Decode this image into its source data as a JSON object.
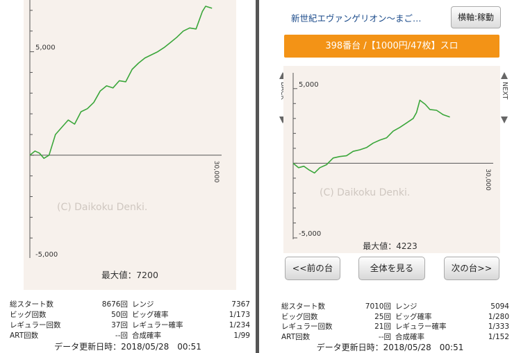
{
  "left_panel": {
    "max_value_label": "最大値：7200",
    "stats": [
      {
        "label": "総スタート数",
        "value": "8676回",
        "label2": "レンジ",
        "value2": "7367"
      },
      {
        "label": "ビッグ回数",
        "value": "50回",
        "label2": "ビッグ確率",
        "value2": "1/173"
      },
      {
        "label": "レギュラー回数",
        "value": "37回",
        "label2": "レギュラー確率",
        "value2": "1/234"
      },
      {
        "label": "ART回数",
        "value": "--回",
        "label2": "合成確率",
        "value2": "1/99"
      }
    ],
    "update_time": "データ更新日時：2018/05/28　00:51"
  },
  "right_panel": {
    "machine_title": "新世紀エヴァンゲリオン〜まご…",
    "axis_button": "横軸:稼動",
    "machine_info": "398番台 /【1000円/47枚】スロ",
    "nav_back": "BACK",
    "nav_next": "NEXT",
    "max_value_label": "最大値：4223",
    "buttons": {
      "prev": "<<前の台",
      "all": "全体を見る",
      "next": "次の台>>"
    },
    "stats": [
      {
        "label": "総スタート数",
        "value": "7010回",
        "label2": "レンジ",
        "value2": "5094"
      },
      {
        "label": "ビッグ回数",
        "value": "25回",
        "label2": "ビッグ確率",
        "value2": "1/280"
      },
      {
        "label": "レギュラー回数",
        "value": "21回",
        "label2": "レギュラー確率",
        "value2": "1/333"
      },
      {
        "label": "ART回数",
        "value": "--回",
        "label2": "合成確率",
        "value2": "1/152"
      }
    ],
    "update_time": "データ更新日時：2018/05/28　00:51"
  },
  "chart_data": [
    {
      "type": "line",
      "ylim": [
        -5000,
        7500
      ],
      "xlim": [
        0,
        30000
      ],
      "y_ticks": [
        5000,
        -5000
      ],
      "y_tick_labels": [
        "5,000",
        "-5,000"
      ],
      "x_tick_labels": [
        "30,000"
      ],
      "watermark": "(C) Daikoku Denki.",
      "x": [
        0,
        800,
        1500,
        2200,
        3000,
        4000,
        5000,
        6000,
        7000,
        8000,
        9000,
        10000,
        11000,
        12000,
        13000,
        14000,
        15000,
        16000,
        17000,
        18000,
        19000,
        20000,
        21000,
        22000,
        23000,
        24000,
        25000,
        26000,
        27000,
        27500,
        28500
      ],
      "values": [
        0,
        200,
        100,
        -150,
        0,
        1000,
        1350,
        1700,
        1500,
        2100,
        2250,
        2550,
        3100,
        3350,
        3250,
        3600,
        3550,
        4150,
        4450,
        4700,
        4850,
        5000,
        5200,
        5450,
        5700,
        6000,
        6150,
        6100,
        6950,
        7200,
        7100
      ],
      "color": "#3aa63a"
    },
    {
      "type": "line",
      "ylim": [
        -5000,
        5500
      ],
      "xlim": [
        0,
        30000
      ],
      "y_ticks": [
        5000,
        -5000
      ],
      "y_tick_labels": [
        "5,000",
        "-5,000"
      ],
      "x_tick_labels": [
        "30,000"
      ],
      "watermark": "(C) Daikoku Denki.",
      "x": [
        0,
        800,
        1600,
        2400,
        3200,
        4000,
        5000,
        6000,
        7000,
        8000,
        9000,
        10000,
        11000,
        12000,
        13000,
        14000,
        15000,
        16000,
        17000,
        18000,
        18500,
        19000,
        19800,
        20500,
        21500,
        22500,
        23500
      ],
      "values": [
        0,
        -300,
        -200,
        -450,
        -650,
        -300,
        -100,
        350,
        450,
        500,
        800,
        900,
        1050,
        1350,
        1550,
        1700,
        2150,
        2400,
        2700,
        3000,
        3400,
        4223,
        3950,
        3600,
        3550,
        3250,
        3100
      ],
      "color": "#3aa63a"
    }
  ]
}
